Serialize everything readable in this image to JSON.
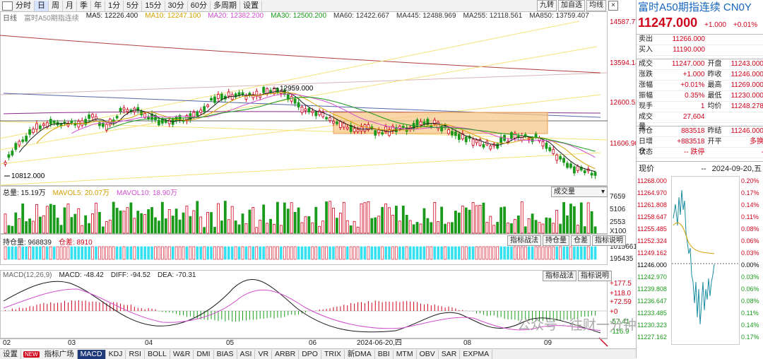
{
  "toolbar": {
    "items": [
      "分时",
      "日",
      "周",
      "月",
      "季",
      "年",
      "1分",
      "5分",
      "15分",
      "30分",
      "60分",
      "多周期",
      "设置"
    ],
    "active_index": 1,
    "right_buttons": [
      "九转",
      "加自选",
      "均线"
    ],
    "close": "×"
  },
  "main_legend": {
    "name": "富时A50期指连续",
    "period": "日线",
    "ma": [
      {
        "label": "MA5: 12226.400",
        "color": "#1a1a1a"
      },
      {
        "label": "MA10: 12247.100",
        "color": "#d4a000"
      },
      {
        "label": "MA20: 12382.200",
        "color": "#d14fcf"
      },
      {
        "label": "MA30: 12500.200",
        "color": "#1a9a1a"
      },
      {
        "label": "MA60: 12422.667",
        "color": "#333333"
      },
      {
        "label": "MA445: 12488.969",
        "color": "#333333"
      },
      {
        "label": "MA255: 12118.561",
        "color": "#333333"
      },
      {
        "label": "MA850: 13759.407",
        "color": "#333333"
      }
    ]
  },
  "price_axis": [
    "14587.77",
    "13594.14",
    "12600.52",
    "11606.90"
  ],
  "annotations": {
    "high": "12959.000",
    "low": "10812.000"
  },
  "volume": {
    "legend": [
      {
        "label": "总量: 15.19万",
        "color": "#1a1a1a"
      },
      {
        "label": "MAVOL5: 20.07万",
        "color": "#d4a000"
      },
      {
        "label": "MAVOL10: 18.90万",
        "color": "#d14fcf"
      }
    ],
    "dropdown": "成交量",
    "axis": [
      "7659",
      "5106",
      "2553",
      "X100"
    ]
  },
  "oi": {
    "legend": [
      {
        "label": "持仓量: 968839",
        "color": "#1a1a1a"
      },
      {
        "label": "仓差: 8910",
        "color": "#d0021b"
      }
    ],
    "buttons": [
      "指标战法",
      "持仓量",
      "仓差",
      "指标说明"
    ],
    "axis": [
      "1015661",
      "195435"
    ]
  },
  "macd": {
    "legend": [
      {
        "label": "MACD(12,26,9)",
        "color": "#666666"
      },
      {
        "label": "MACD: -48.42",
        "color": "#1a1a1a"
      },
      {
        "label": "DIFF: -94.52",
        "color": "#1a1a1a"
      },
      {
        "label": "DEA: -70.31",
        "color": "#1a1a1a"
      }
    ],
    "buttons": [
      "指标战法",
      "指标说明"
    ],
    "axis": [
      "+177.5",
      "+118.0",
      "+72.59",
      "+0",
      "-57.41",
      "-116.9"
    ]
  },
  "date_axis": {
    "labels": [
      "02",
      "03",
      "04",
      "05",
      "06",
      "2024-06-20,四",
      "08",
      "09"
    ]
  },
  "bottom_bar": {
    "items": [
      "设置",
      "NEW",
      "指标广场",
      "MACD",
      "KDJ",
      "RSI",
      "BOLL",
      "W&R",
      "DMI",
      "BIAS",
      "ASI",
      "VR",
      "ARBR",
      "DPO",
      "TRIX",
      "新DMA",
      "BBI",
      "MTM",
      "OBV",
      "SAR",
      "EXPMA"
    ],
    "active": "MACD"
  },
  "watermark": "公众号 · 往财一分钟",
  "right_panel": {
    "title": "富时A50期指连续 CN0Y",
    "price": "11247.000",
    "change": "+1.000",
    "change_pct": "+0.01%",
    "sell": {
      "label": "卖出",
      "value": "11266.000"
    },
    "buy": {
      "label": "买入",
      "value": "11190.000"
    },
    "rows": [
      {
        "l1": "成交",
        "v1": "11247.000",
        "l2": "开盘",
        "v2": "11243.000"
      },
      {
        "l1": "涨跌",
        "v1": "+1.000",
        "l2": "昨收",
        "v2": "11246.000"
      },
      {
        "l1": "涨幅",
        "v1": "+0.01%",
        "l2": "最高",
        "v2": "11269.000"
      },
      {
        "l1": "振幅",
        "v1": "0.35%",
        "l2": "最低",
        "v2": "11230.000"
      },
      {
        "l1": "现手",
        "v1": "1",
        "l2": "均价",
        "v2": "11248.278"
      },
      {
        "l1": "成交量",
        "v1": "27,604",
        "l2": "",
        "v2": ""
      }
    ],
    "rows2": [
      {
        "l1": "持仓",
        "v1": "883518",
        "l2": "昨结",
        "v2": "11246.000"
      },
      {
        "l1": "日增仓",
        "v1": "+883518",
        "l2": "开平",
        "v2": "多换"
      },
      {
        "l1": "状态",
        "v1": "-- 跌停",
        "l2": "",
        "v2": "-"
      }
    ],
    "now_label": "现价",
    "now_value": "--",
    "now_date": "2024-09-20,五",
    "left_axis": [
      "11268.000",
      "11264.970",
      "11261.808",
      "11258.647",
      "11255.485",
      "11252.324",
      "11249.162",
      "11246.000",
      "11242.970",
      "11239.808",
      "11236.647",
      "11233.485",
      "11230.323",
      "11227.162"
    ],
    "right_axis": [
      "0.20%",
      "0.17%",
      "0.14%",
      "0.11%",
      "0.08%",
      "0.06%",
      "0.03%",
      "0.00%",
      "0.03%",
      "0.06%",
      "0.08%",
      "0.11%",
      "0.14%",
      "0.17%"
    ]
  },
  "colors": {
    "up": "#d0021b",
    "down": "#1a9a1a",
    "oi_bar": "#33e0f0",
    "box": "#f6c88a",
    "accent": "#1565c0"
  }
}
